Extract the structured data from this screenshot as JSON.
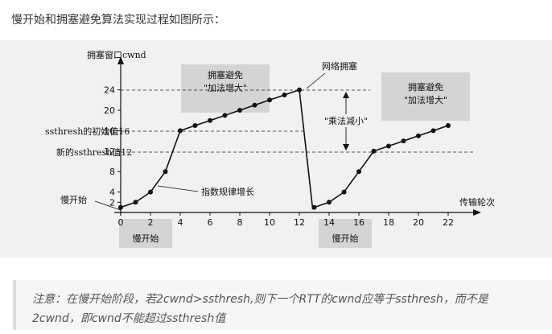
{
  "intro_text": "慢开始和拥塞避免算法实现过程如图所示：",
  "diagram": {
    "y_axis_label": "拥塞窗口cwnd",
    "x_axis_label": "传输轮次",
    "y_ticks": [
      "0",
      "2",
      "4",
      "8",
      "12",
      "16",
      "20",
      "24"
    ],
    "y_tick_values": [
      0,
      2,
      4,
      8,
      12,
      16,
      20,
      24
    ],
    "x_ticks": [
      "0",
      "2",
      "4",
      "6",
      "8",
      "10",
      "12",
      "14",
      "16",
      "18",
      "20",
      "22"
    ],
    "x_tick_values": [
      0,
      2,
      4,
      6,
      8,
      10,
      12,
      14,
      16,
      18,
      20,
      22
    ],
    "initial_ssthresh_label": "ssthresh的初始值16",
    "new_ssthresh_label": "新的ssthresh值12",
    "slow_start_label": "慢开始",
    "exp_growth_label": "指数规律增长",
    "congestion_label": "网络拥塞",
    "multiplicative_decrease_label": "\"乘法减小\"",
    "ca_box_1": {
      "line1": "拥塞避免",
      "line2": "\"加法增大\""
    },
    "ca_box_2": {
      "line1": "拥塞避免",
      "line2": "\"加法增大\""
    },
    "slow_start_bottom_1": "慢开始",
    "slow_start_bottom_2": "慢开始",
    "series_points": [
      [
        0,
        1
      ],
      [
        1,
        2
      ],
      [
        2,
        4
      ],
      [
        3,
        8
      ],
      [
        4,
        16
      ],
      [
        5,
        17
      ],
      [
        6,
        18
      ],
      [
        7,
        19
      ],
      [
        8,
        20
      ],
      [
        9,
        21
      ],
      [
        10,
        22
      ],
      [
        11,
        23
      ],
      [
        12,
        24
      ],
      [
        13,
        1
      ],
      [
        14,
        2
      ],
      [
        15,
        4
      ],
      [
        16,
        8
      ],
      [
        17,
        12
      ],
      [
        18,
        13
      ],
      [
        19,
        14
      ],
      [
        20,
        15
      ],
      [
        21,
        16
      ],
      [
        22,
        17
      ]
    ]
  },
  "note": {
    "line1": "注意：在慢开始阶段，若2cwnd>ssthresh,则下一个RTT的cwnd应等于ssthresh，而不是",
    "line2": "2cwnd，即cwnd不能超过ssthresh值"
  }
}
